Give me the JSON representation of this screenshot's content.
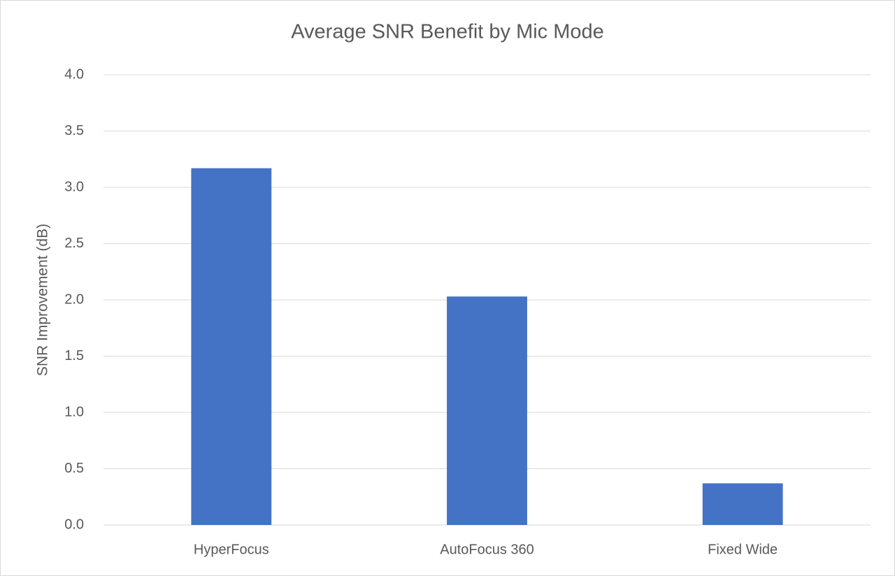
{
  "chart_data": {
    "type": "bar",
    "title": "Average SNR Benefit by Mic Mode",
    "y_label": "SNR Improvement (dB)",
    "categories": [
      "HyperFocus",
      "AutoFocus 360",
      "Fixed Wide"
    ],
    "values": [
      3.17,
      2.03,
      0.37
    ],
    "color": "#4472c4",
    "ylim": [
      0,
      4
    ],
    "yticks": [
      {
        "value": 0,
        "label": "0.0"
      },
      0.5,
      {
        "value": 1,
        "label": "1.0"
      },
      1.5,
      {
        "value": 2,
        "label": "2.0"
      },
      2.5,
      {
        "value": 3,
        "label": "3.0"
      },
      3.5,
      {
        "value": 4,
        "label": "4.0"
      }
    ],
    "grid": true
  }
}
